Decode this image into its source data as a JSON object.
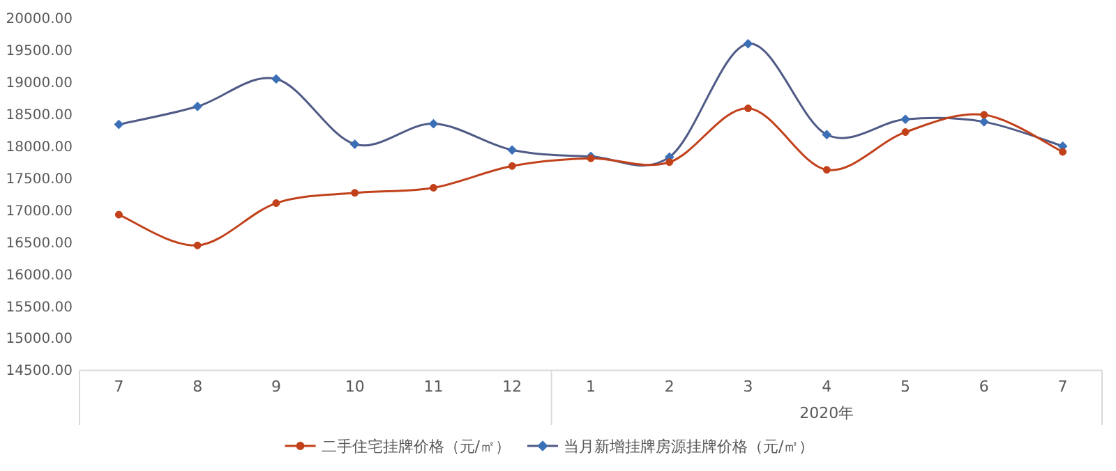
{
  "chart_data": {
    "type": "line",
    "categories": [
      "7",
      "8",
      "9",
      "10",
      "11",
      "12",
      "1",
      "2",
      "3",
      "4",
      "5",
      "6",
      "7"
    ],
    "series": [
      {
        "name": "二手住宅挂牌价格（元/㎡）",
        "color": "#c1411b",
        "marker": "circle",
        "values": [
          16930,
          16450,
          17110,
          17270,
          17350,
          17690,
          17810,
          17750,
          18590,
          17630,
          18220,
          18490,
          17910
        ]
      },
      {
        "name": "当月新增挂牌房源挂牌价格（元/㎡）",
        "color": "#4f5a86",
        "marker": "diamond",
        "values": [
          18340,
          18620,
          19050,
          18030,
          18350,
          17940,
          17840,
          17830,
          19600,
          18180,
          18420,
          18380,
          18000
        ]
      }
    ],
    "ylim": [
      14500,
      20000
    ],
    "yticks": [
      {
        "value": 14500,
        "label": "14500.00"
      },
      {
        "value": 15000,
        "label": "15000.00"
      },
      {
        "value": 15500,
        "label": "15500.00"
      },
      {
        "value": 16000,
        "label": "16000.00"
      },
      {
        "value": 16500,
        "label": "16500.00"
      },
      {
        "value": 17000,
        "label": "17000.00"
      },
      {
        "value": 17500,
        "label": "17500.00"
      },
      {
        "value": 18000,
        "label": "18000.00"
      },
      {
        "value": 18500,
        "label": "18500.00"
      },
      {
        "value": 19000,
        "label": "19000.00"
      },
      {
        "value": 19500,
        "label": "19500.00"
      },
      {
        "value": 20000,
        "label": "20000.00"
      }
    ],
    "annotations": [
      "2020年"
    ],
    "grid": false,
    "legend": "bottom"
  }
}
